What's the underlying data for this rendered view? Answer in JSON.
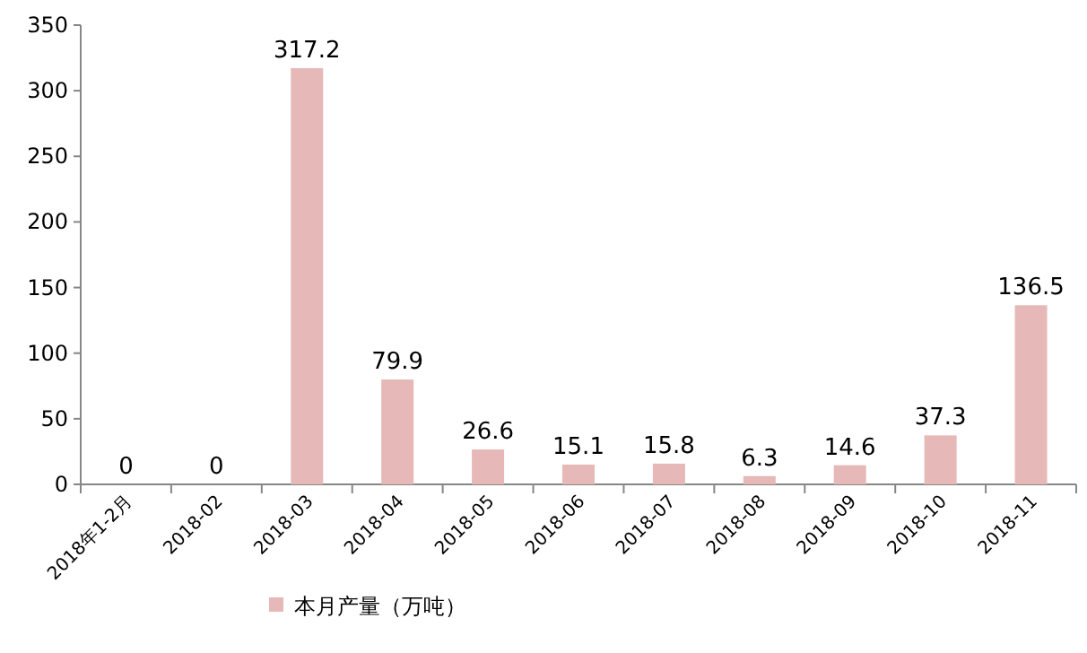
{
  "chart_data": {
    "type": "bar",
    "categories": [
      "2018年1-2月",
      "2018-02",
      "2018-03",
      "2018-04",
      "2018-05",
      "2018-06",
      "2018-07",
      "2018-08",
      "2018-09",
      "2018-10",
      "2018-11"
    ],
    "series": [
      {
        "name": "本月产量（万吨）",
        "color": "#e6b8b7",
        "values": [
          0,
          0,
          317.2,
          79.9,
          26.6,
          15.1,
          15.8,
          6.3,
          14.6,
          37.3,
          136.5
        ]
      }
    ],
    "ylim": [
      0,
      350
    ],
    "yticks": [
      0,
      50,
      100,
      150,
      200,
      250,
      300,
      350
    ],
    "data_labels": true,
    "legend": "bottom",
    "grid": false
  }
}
